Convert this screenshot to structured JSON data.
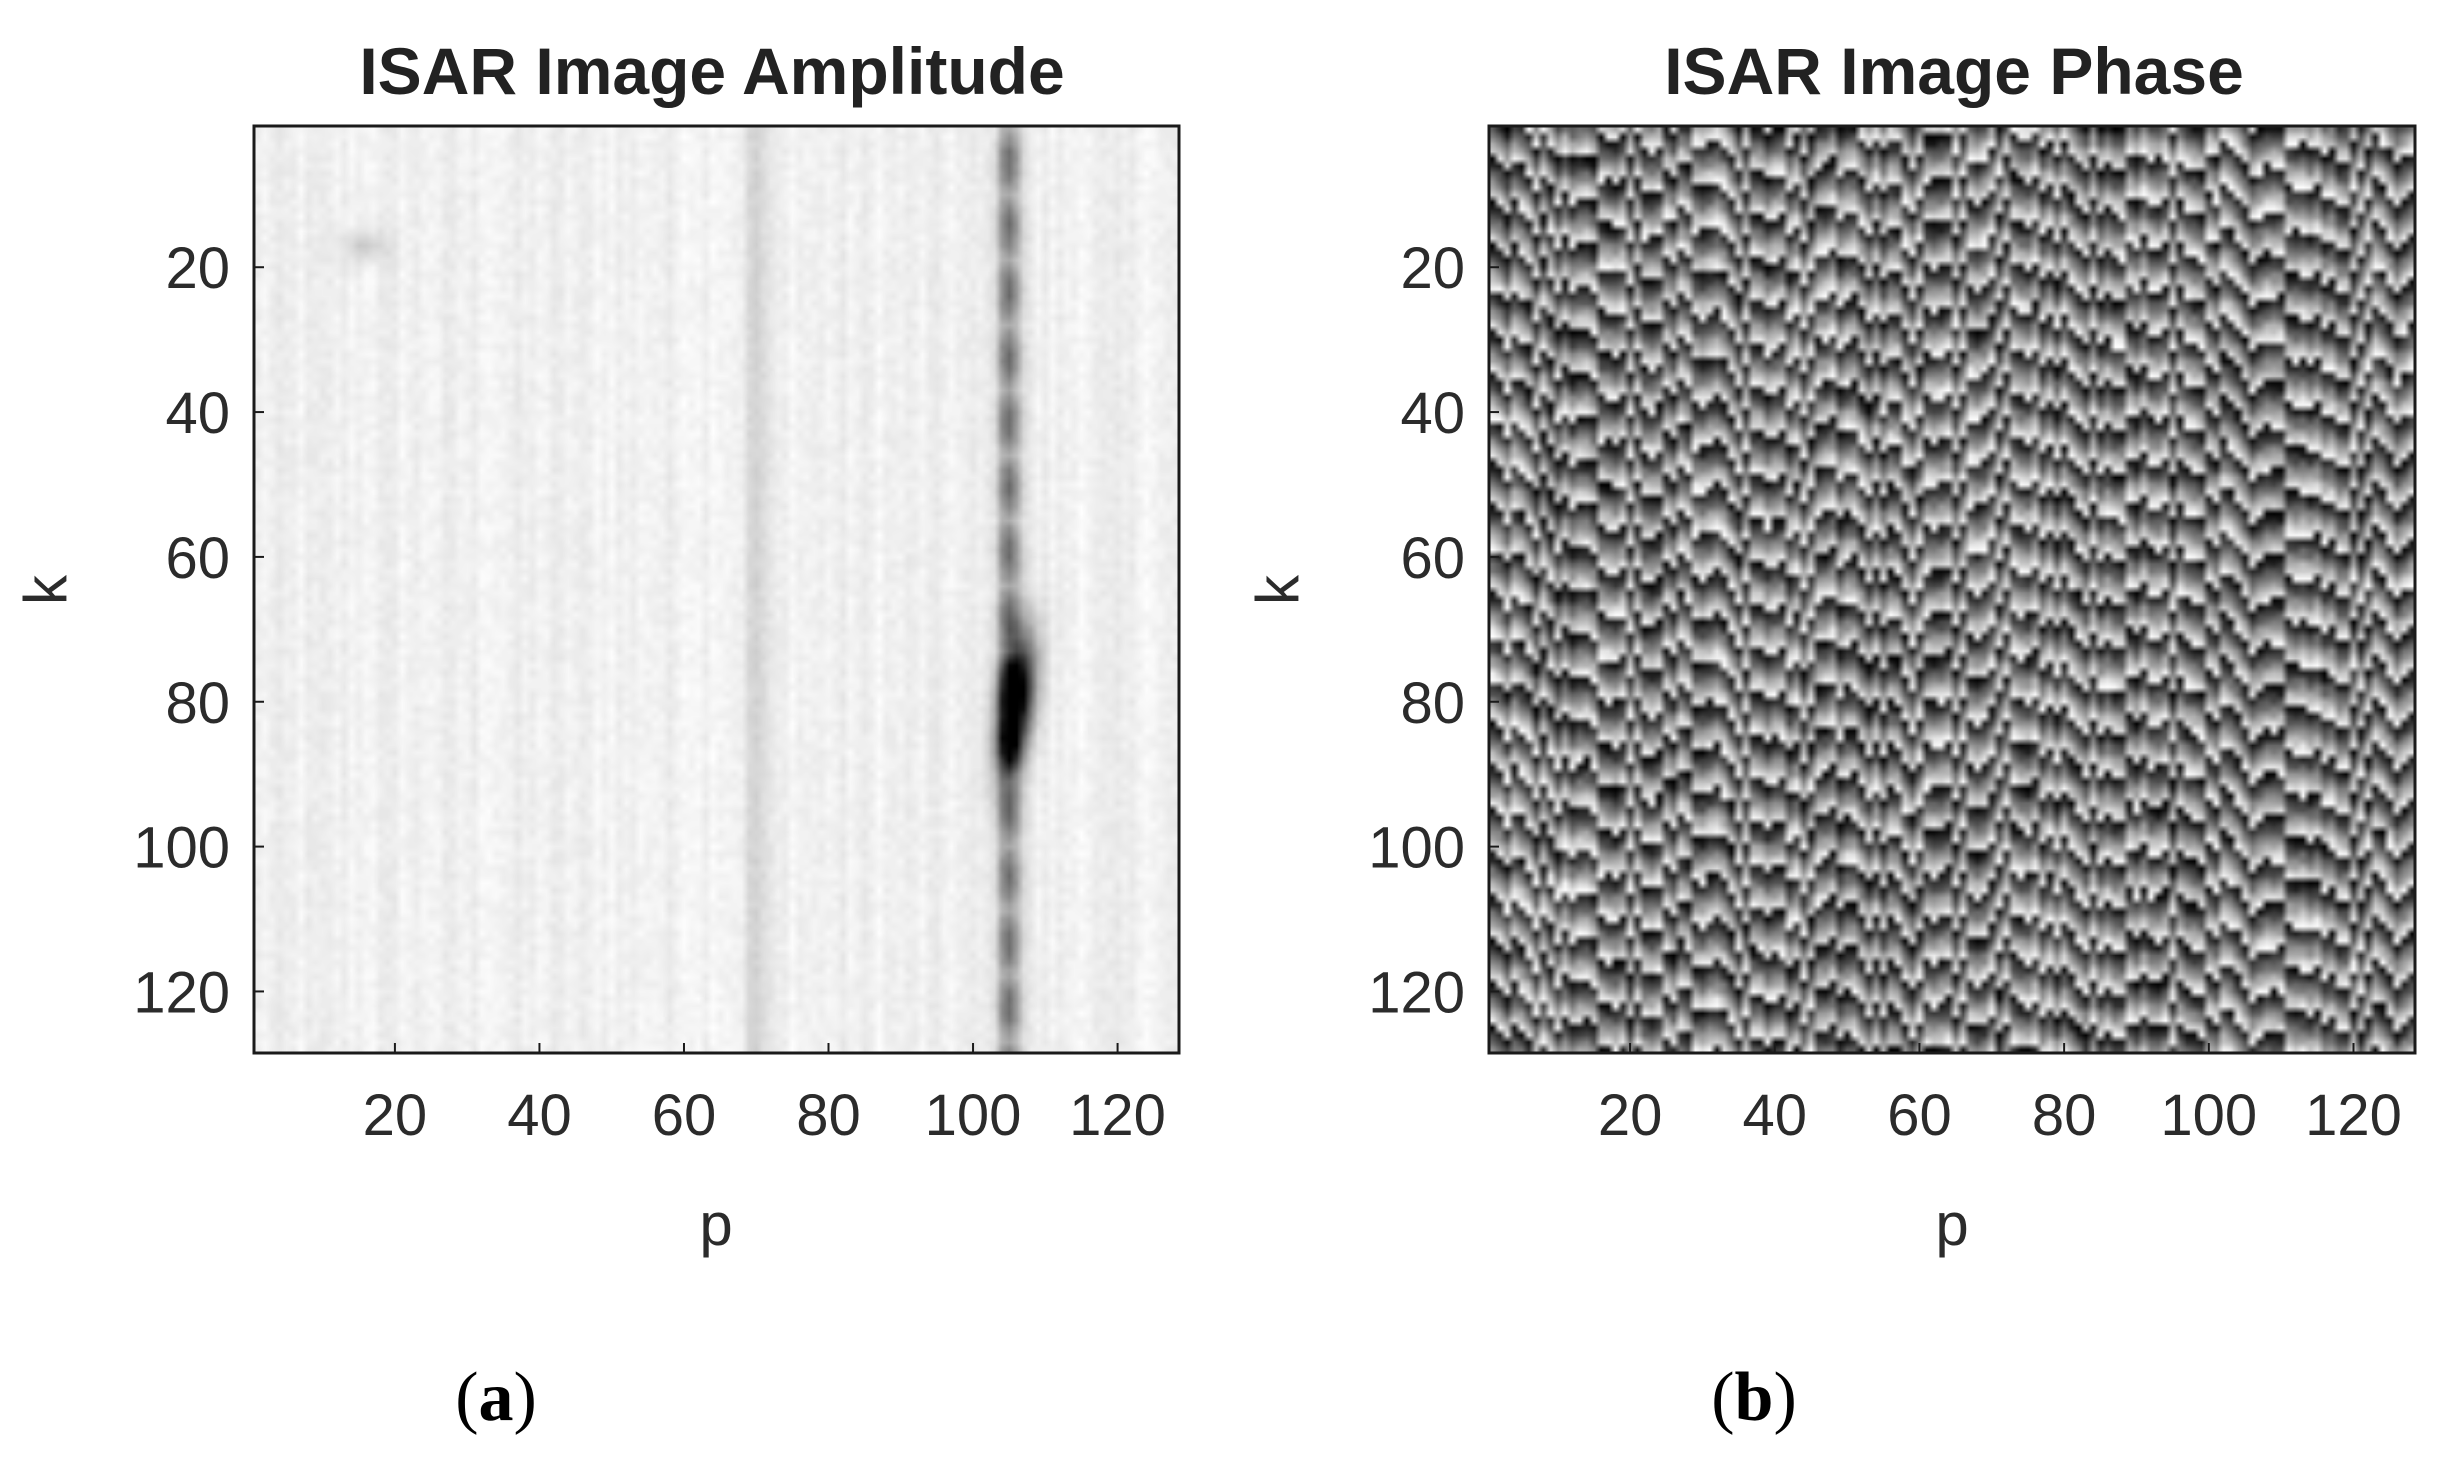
{
  "chart_data": [
    {
      "type": "heatmap",
      "title": "ISAR Image Amplitude",
      "xlabel": "p",
      "ylabel": "k",
      "xlim": [
        1,
        128
      ],
      "ylim": [
        1,
        128
      ],
      "y_direction": "reversed",
      "colormap": "gray-reversed",
      "xticks": [
        20,
        40,
        60,
        80,
        100,
        120
      ],
      "yticks": [
        20,
        40,
        60,
        80,
        100,
        120
      ],
      "xtick_labels": [
        "20",
        "40",
        "60",
        "80",
        "100",
        "120"
      ],
      "ytick_labels": [
        "20",
        "40",
        "60",
        "80",
        "100",
        "120"
      ],
      "features": [
        {
          "kind": "strong-scatterer",
          "p": 106,
          "k": 80,
          "relative_intensity": 1.0
        },
        {
          "kind": "vertical-streak",
          "p": 105,
          "k_range": [
            1,
            128
          ],
          "relative_intensity": 0.55
        },
        {
          "kind": "faint-streak",
          "p": 70,
          "k_range": [
            1,
            128
          ],
          "relative_intensity": 0.12
        },
        {
          "kind": "faint-spot",
          "p": 16,
          "k": 17,
          "relative_intensity": 0.15
        }
      ],
      "panel_label": "a"
    },
    {
      "type": "heatmap",
      "title": "ISAR Image Phase",
      "xlabel": "p",
      "ylabel": "k",
      "xlim": [
        1,
        128
      ],
      "ylim": [
        1,
        128
      ],
      "y_direction": "reversed",
      "colormap": "gray",
      "value_range": [
        "-π",
        "π"
      ],
      "xticks": [
        20,
        40,
        60,
        80,
        100,
        120
      ],
      "yticks": [
        20,
        40,
        60,
        80,
        100,
        120
      ],
      "xtick_labels": [
        "20",
        "40",
        "60",
        "80",
        "100",
        "120"
      ],
      "ytick_labels": [
        "20",
        "40",
        "60",
        "80",
        "100",
        "120"
      ],
      "pattern": "wrapped phase with diagonal fringes",
      "panel_label": "b"
    }
  ]
}
